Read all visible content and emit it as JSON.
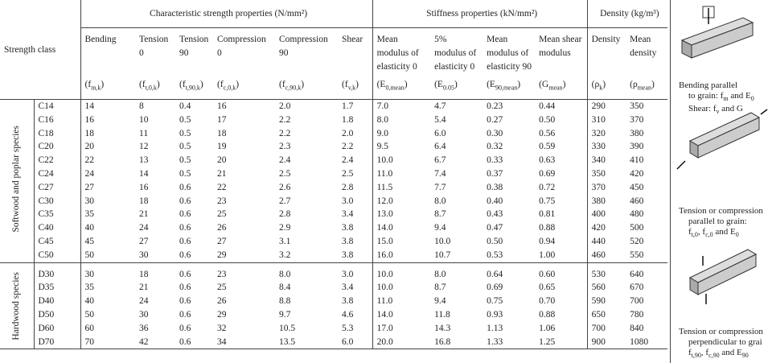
{
  "table": {
    "corner": "Strength class",
    "header_groups": [
      {
        "text": "Characteristic strength properties (N/mm²)",
        "span": 6
      },
      {
        "text": "Stiffness properties (kN/mm²)",
        "span": 4
      },
      {
        "text": "Density (kg/m³)",
        "span": 2
      }
    ],
    "columns": [
      {
        "name": [
          "Bending"
        ],
        "symbol": [
          {
            "t": "(f"
          },
          {
            "sub": "m,k"
          },
          {
            "t": ")"
          }
        ]
      },
      {
        "name": [
          "Tension",
          "0"
        ],
        "symbol": [
          {
            "t": "(f"
          },
          {
            "sub": "t,0,k"
          },
          {
            "t": ")"
          }
        ]
      },
      {
        "name": [
          "Tension",
          "90"
        ],
        "symbol": [
          {
            "t": "(f"
          },
          {
            "sub": "t,90,k"
          },
          {
            "t": ")"
          }
        ]
      },
      {
        "name": [
          "Compression",
          "0"
        ],
        "symbol": [
          {
            "t": "(f"
          },
          {
            "sub": "c,0,k"
          },
          {
            "t": ")"
          }
        ]
      },
      {
        "name": [
          "Compression",
          "90"
        ],
        "symbol": [
          {
            "t": "(f"
          },
          {
            "sub": "c,90,k"
          },
          {
            "t": ")"
          }
        ]
      },
      {
        "name": [
          "Shear"
        ],
        "symbol": [
          {
            "t": "(f"
          },
          {
            "sub": "v,k"
          },
          {
            "t": ")"
          }
        ]
      },
      {
        "name": [
          "Mean",
          "modulus of",
          "elasticity 0"
        ],
        "symbol": [
          {
            "t": "(E"
          },
          {
            "sub": "0,mean"
          },
          {
            "t": ")"
          }
        ]
      },
      {
        "name": [
          "5%",
          "modulus of",
          "elasticity 0"
        ],
        "symbol": [
          {
            "t": "(E"
          },
          {
            "sub": "0.05"
          },
          {
            "t": ")"
          }
        ]
      },
      {
        "name": [
          "Mean",
          "modulus of",
          "elasticity 90"
        ],
        "symbol": [
          {
            "t": "(E"
          },
          {
            "sub": "90,mean"
          },
          {
            "t": ")"
          }
        ]
      },
      {
        "name": [
          "Mean shear",
          "modulus"
        ],
        "symbol": [
          {
            "t": "(G"
          },
          {
            "sub": "mean"
          },
          {
            "t": ")"
          }
        ]
      },
      {
        "name": [
          "Density"
        ],
        "symbol": [
          {
            "t": "(ρ"
          },
          {
            "sub": "k"
          },
          {
            "t": ")"
          }
        ]
      },
      {
        "name": [
          "Mean",
          "density"
        ],
        "symbol": [
          {
            "t": "(ρ"
          },
          {
            "sub": "mean"
          },
          {
            "t": ")"
          }
        ]
      }
    ],
    "sections": [
      {
        "label": "Softwood and poplar species",
        "rows": [
          {
            "class": "C14",
            "values": [
              "14",
              "8",
              "0.4",
              "16",
              "2.0",
              "1.7",
              "7.0",
              "4.7",
              "0.23",
              "0.44",
              "290",
              "350"
            ]
          },
          {
            "class": "C16",
            "values": [
              "16",
              "10",
              "0.5",
              "17",
              "2.2",
              "1.8",
              "8.0",
              "5.4",
              "0.27",
              "0.50",
              "310",
              "370"
            ]
          },
          {
            "class": "C18",
            "values": [
              "18",
              "11",
              "0.5",
              "18",
              "2.2",
              "2.0",
              "9.0",
              "6.0",
              "0.30",
              "0.56",
              "320",
              "380"
            ]
          },
          {
            "class": "C20",
            "values": [
              "20",
              "12",
              "0.5",
              "19",
              "2.3",
              "2.2",
              "9.5",
              "6.4",
              "0.32",
              "0.59",
              "330",
              "390"
            ]
          },
          {
            "class": "C22",
            "values": [
              "22",
              "13",
              "0.5",
              "20",
              "2.4",
              "2.4",
              "10.0",
              "6.7",
              "0.33",
              "0.63",
              "340",
              "410"
            ]
          },
          {
            "class": "C24",
            "values": [
              "24",
              "14",
              "0.5",
              "21",
              "2.5",
              "2.5",
              "11.0",
              "7.4",
              "0.37",
              "0.69",
              "350",
              "420"
            ]
          },
          {
            "class": "C27",
            "values": [
              "27",
              "16",
              "0.6",
              "22",
              "2.6",
              "2.8",
              "11.5",
              "7.7",
              "0.38",
              "0.72",
              "370",
              "450"
            ]
          },
          {
            "class": "C30",
            "values": [
              "30",
              "18",
              "0.6",
              "23",
              "2.7",
              "3.0",
              "12.0",
              "8.0",
              "0.40",
              "0.75",
              "380",
              "460"
            ]
          },
          {
            "class": "C35",
            "values": [
              "35",
              "21",
              "0.6",
              "25",
              "2.8",
              "3.4",
              "13.0",
              "8.7",
              "0.43",
              "0.81",
              "400",
              "480"
            ]
          },
          {
            "class": "C40",
            "values": [
              "40",
              "24",
              "0.6",
              "26",
              "2.9",
              "3.8",
              "14.0",
              "9.4",
              "0.47",
              "0.88",
              "420",
              "500"
            ]
          },
          {
            "class": "C45",
            "values": [
              "45",
              "27",
              "0.6",
              "27",
              "3.1",
              "3.8",
              "15.0",
              "10.0",
              "0.50",
              "0.94",
              "440",
              "520"
            ]
          },
          {
            "class": "C50",
            "values": [
              "50",
              "30",
              "0.6",
              "29",
              "3.2",
              "3.8",
              "16.0",
              "10.7",
              "0.53",
              "1.00",
              "460",
              "550"
            ]
          }
        ]
      },
      {
        "label": "Hardwood species",
        "rows": [
          {
            "class": "D30",
            "values": [
              "30",
              "18",
              "0.6",
              "23",
              "8.0",
              "3.0",
              "10.0",
              "8.0",
              "0.64",
              "0.60",
              "530",
              "640"
            ]
          },
          {
            "class": "D35",
            "values": [
              "35",
              "21",
              "0.6",
              "25",
              "8.4",
              "3.4",
              "10.0",
              "8.7",
              "0.69",
              "0.65",
              "560",
              "670"
            ]
          },
          {
            "class": "D40",
            "values": [
              "40",
              "24",
              "0.6",
              "26",
              "8.8",
              "3.8",
              "11.0",
              "9.4",
              "0.75",
              "0.70",
              "590",
              "700"
            ]
          },
          {
            "class": "D50",
            "values": [
              "50",
              "30",
              "0.6",
              "29",
              "9.7",
              "4.6",
              "14.0",
              "11.8",
              "0.93",
              "0.88",
              "650",
              "780"
            ]
          },
          {
            "class": "D60",
            "values": [
              "60",
              "36",
              "0.6",
              "32",
              "10.5",
              "5.3",
              "17.0",
              "14.3",
              "1.13",
              "1.06",
              "700",
              "840"
            ]
          },
          {
            "class": "D70",
            "values": [
              "70",
              "42",
              "0.6",
              "34",
              "13.5",
              "6.0",
              "20.0",
              "16.8",
              "1.33",
              "1.25",
              "900",
              "1080"
            ]
          }
        ]
      }
    ]
  },
  "captions": [
    [
      [
        {
          "t": "Bending parallel"
        }
      ],
      [
        {
          "t": "to grain: f"
        },
        {
          "sub": "m"
        },
        {
          "t": " and E"
        },
        {
          "sub": "0"
        }
      ],
      [
        {
          "t": "Shear: f"
        },
        {
          "sub": "v"
        },
        {
          "t": " and G"
        }
      ]
    ],
    [
      [
        {
          "t": "Tension or compression"
        }
      ],
      [
        {
          "t": "parallel to grain:"
        }
      ],
      [
        {
          "t": "f"
        },
        {
          "sub": "t,0"
        },
        {
          "t": ", f"
        },
        {
          "sub": "c,0"
        },
        {
          "t": " and E"
        },
        {
          "sub": "0"
        }
      ]
    ],
    [
      [
        {
          "t": "Tension or compression"
        }
      ],
      [
        {
          "t": "perpendicular to grai"
        }
      ],
      [
        {
          "t": "f"
        },
        {
          "sub": "t,90"
        },
        {
          "t": ", f"
        },
        {
          "sub": "c,90"
        },
        {
          "t": " and E"
        },
        {
          "sub": "90"
        }
      ]
    ]
  ]
}
